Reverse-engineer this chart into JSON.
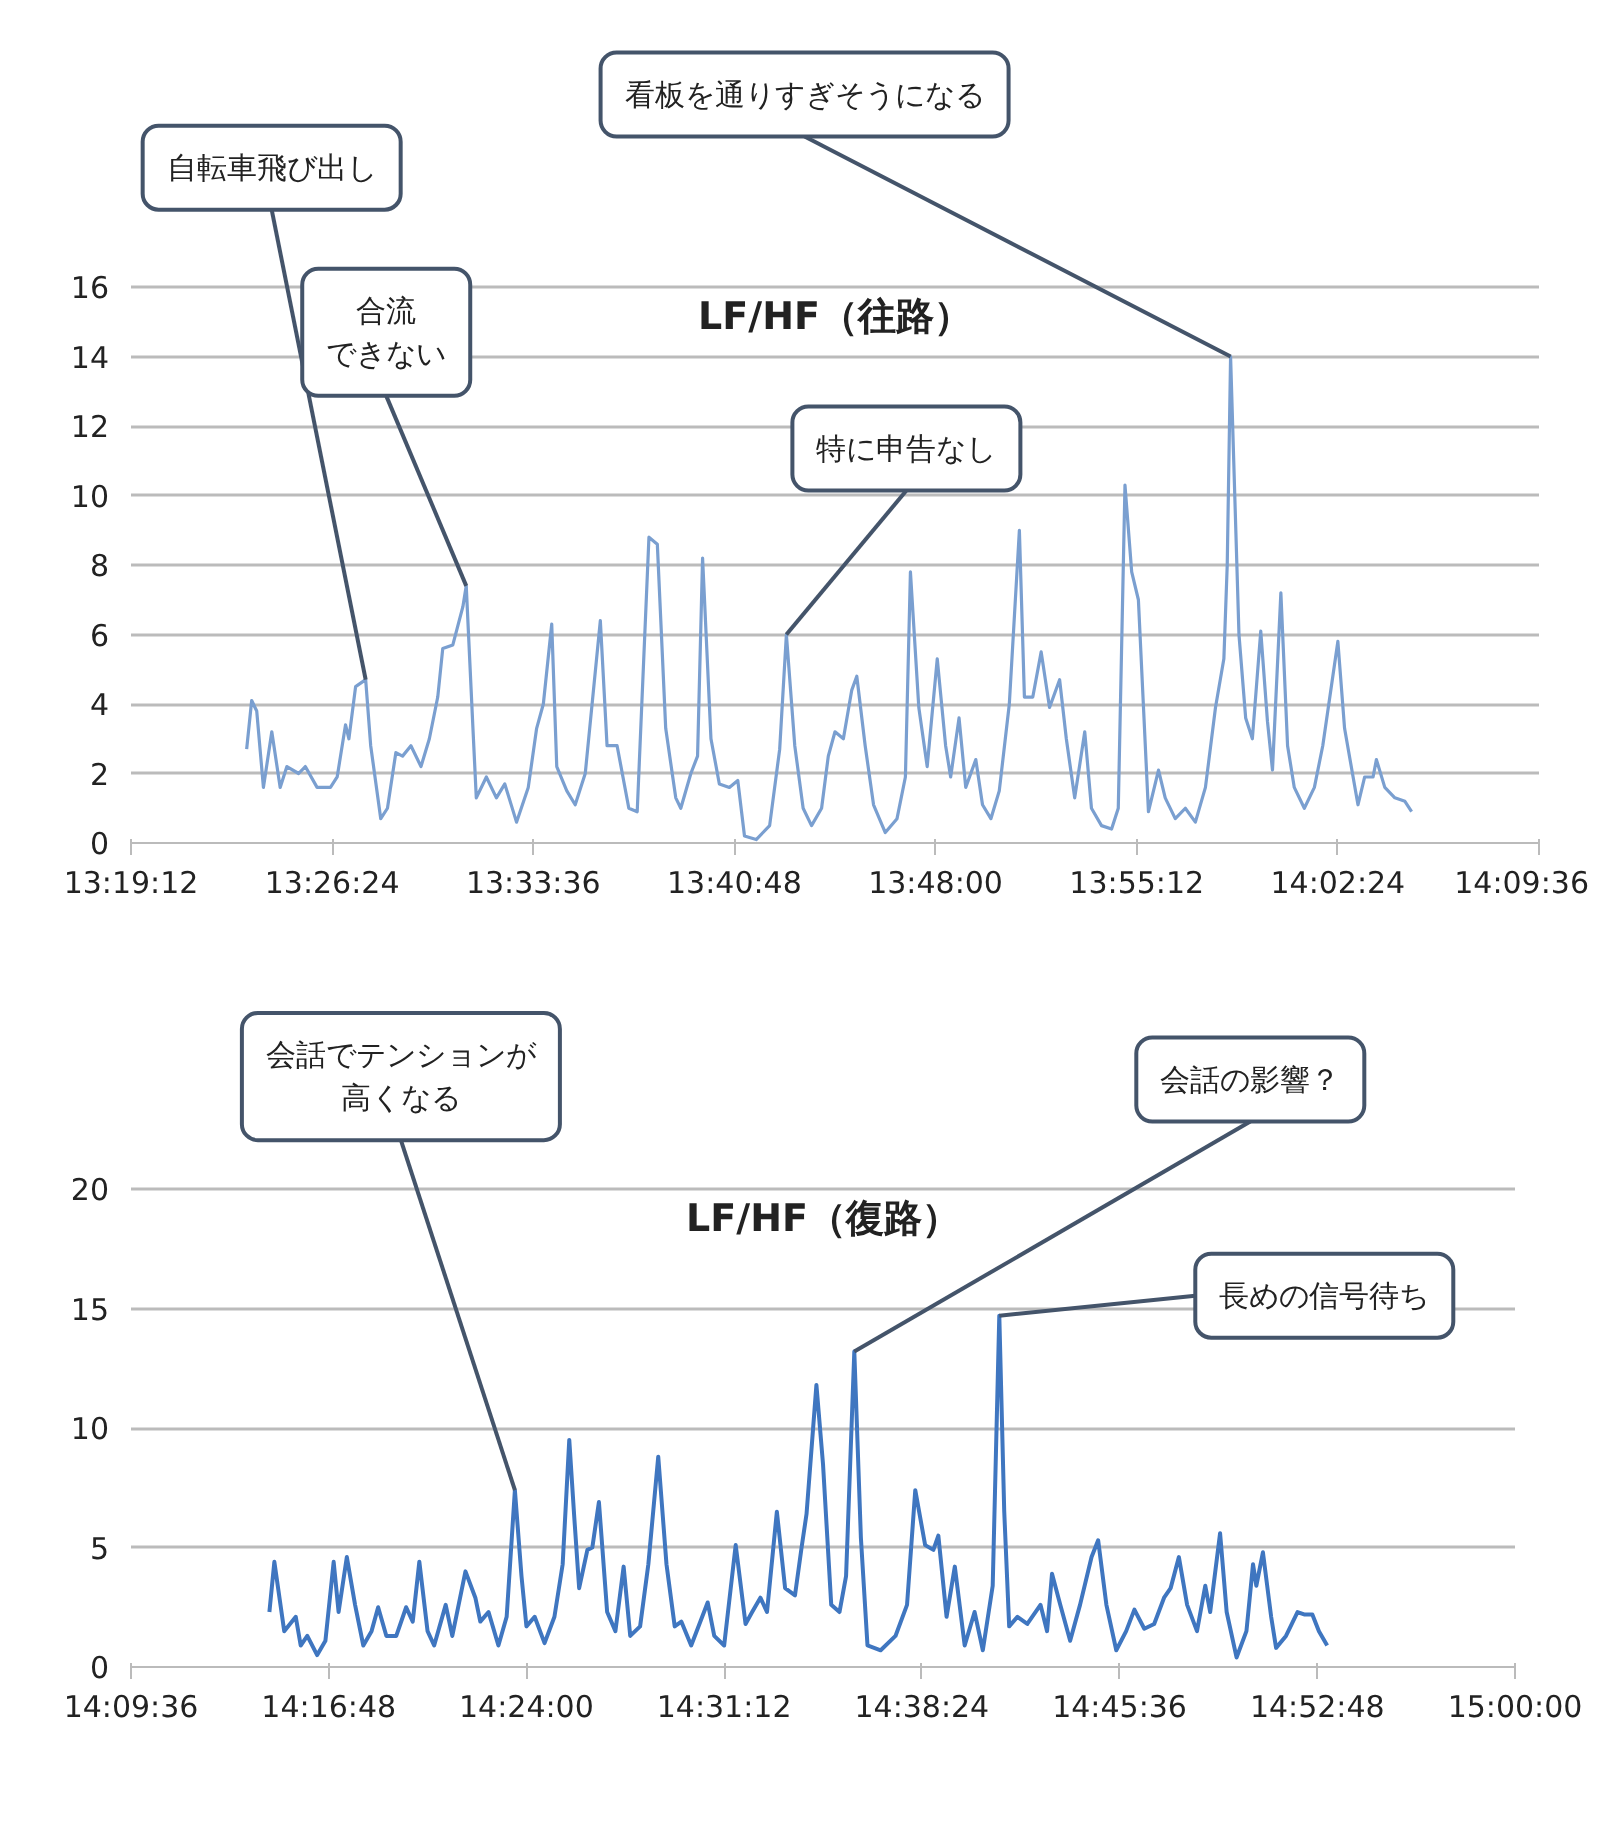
{
  "chart_data": [
    {
      "type": "line",
      "title": "LF/HF（往路）",
      "grid": "y",
      "marker": "none",
      "line_style": "solid",
      "xlim": [
        13.32,
        14.16
      ],
      "xticks": [
        {
          "value": 13.32,
          "label": "13:19:12"
        },
        {
          "value": 13.44,
          "label": "13:26:24"
        },
        {
          "value": 13.56,
          "label": "13:33:36"
        },
        {
          "value": 13.68,
          "label": "13:40:48"
        },
        {
          "value": 13.8,
          "label": "13:48:00"
        },
        {
          "value": 13.92,
          "label": "13:55:12"
        },
        {
          "value": 14.04,
          "label": "14:02:24"
        },
        {
          "value": 14.16,
          "label": "14:09:36"
        }
      ],
      "ylim": [
        0,
        16
      ],
      "yticks": [
        0,
        2,
        4,
        6,
        8,
        10,
        12,
        14,
        16
      ],
      "series": [
        {
          "color": "#7a9fd0",
          "x": [
            13.389,
            13.392,
            13.395,
            13.399,
            13.404,
            13.409,
            13.413,
            13.42,
            13.424,
            13.431,
            13.439,
            13.443,
            13.448,
            13.45,
            13.454,
            13.46,
            13.463,
            13.469,
            13.473,
            13.478,
            13.482,
            13.487,
            13.493,
            13.498,
            13.503,
            13.506,
            13.512,
            13.518,
            13.52,
            13.524,
            13.526,
            13.532,
            13.538,
            13.543,
            13.55,
            13.557,
            13.562,
            13.566,
            13.571,
            13.574,
            13.58,
            13.585,
            13.591,
            13.6,
            13.604,
            13.61,
            13.617,
            13.622,
            13.629,
            13.634,
            13.639,
            13.645,
            13.648,
            13.654,
            13.658,
            13.661,
            13.666,
            13.671,
            13.677,
            13.682,
            13.686,
            13.693,
            13.701,
            13.707,
            13.711,
            13.716,
            13.721,
            13.726,
            13.732,
            13.736,
            13.74,
            13.745,
            13.75,
            13.753,
            13.758,
            13.763,
            13.77,
            13.777,
            13.782,
            13.785,
            13.79,
            13.795,
            13.801,
            13.806,
            13.809,
            13.814,
            13.818,
            13.824,
            13.828,
            13.833,
            13.838,
            13.844,
            13.85,
            13.853,
            13.858,
            13.863,
            13.868,
            13.874,
            13.878,
            13.883,
            13.889,
            13.893,
            13.899,
            13.905,
            13.909,
            13.913,
            13.917,
            13.921,
            13.927,
            13.933,
            13.937,
            13.943,
            13.949,
            13.955,
            13.961,
            13.967,
            13.972,
            13.974,
            13.976,
            13.981,
            13.985,
            13.989,
            13.994,
            13.998,
            14.001,
            14.006,
            14.01,
            14.014,
            14.02,
            14.026,
            14.031,
            14.04,
            14.044,
            14.052,
            14.056,
            14.061,
            14.063,
            14.068,
            14.074,
            14.08,
            14.084
          ],
          "values": [
            2.7,
            4.1,
            3.8,
            1.6,
            3.2,
            1.6,
            2.2,
            2.0,
            2.2,
            1.6,
            1.6,
            1.9,
            3.4,
            3.0,
            4.5,
            4.7,
            2.8,
            0.7,
            1.0,
            2.6,
            2.5,
            2.8,
            2.2,
            3.0,
            4.2,
            5.6,
            5.7,
            6.8,
            7.4,
            3.3,
            1.3,
            1.9,
            1.3,
            1.7,
            0.6,
            1.6,
            3.3,
            4.0,
            6.3,
            2.2,
            1.5,
            1.1,
            2.0,
            6.4,
            2.8,
            2.8,
            1.0,
            0.9,
            8.8,
            8.6,
            3.3,
            1.3,
            1.0,
            2.0,
            2.5,
            8.2,
            3.0,
            1.7,
            1.6,
            1.8,
            0.2,
            0.1,
            0.5,
            2.7,
            6.0,
            2.8,
            1.0,
            0.5,
            1.0,
            2.5,
            3.2,
            3.0,
            4.4,
            4.8,
            2.8,
            1.1,
            0.3,
            0.7,
            1.9,
            7.8,
            3.9,
            2.2,
            5.3,
            2.8,
            1.9,
            3.6,
            1.6,
            2.4,
            1.1,
            0.7,
            1.5,
            4.0,
            9.0,
            4.2,
            4.2,
            5.5,
            3.9,
            4.7,
            3.0,
            1.3,
            3.2,
            1.0,
            0.5,
            0.4,
            1.0,
            10.3,
            7.8,
            7.0,
            0.9,
            2.1,
            1.3,
            0.7,
            1.0,
            0.6,
            1.6,
            3.9,
            5.3,
            8.0,
            14.0,
            6.0,
            3.6,
            3.0,
            6.1,
            3.5,
            2.1,
            7.2,
            2.8,
            1.6,
            1.0,
            1.6,
            2.8,
            5.8,
            3.3,
            1.1,
            1.9,
            1.9,
            2.4,
            1.6,
            1.3,
            1.2,
            0.9
          ]
        }
      ],
      "annotations": [
        {
          "text": "自転車飛び出し",
          "x": 13.46,
          "y": 4.7
        },
        {
          "text": "合流できない",
          "x": 13.52,
          "y": 7.4
        },
        {
          "text": "特に申告なし",
          "x": 13.711,
          "y": 6.0
        },
        {
          "text": "看板を通りすぎそうになる",
          "x": 13.976,
          "y": 14.0
        }
      ]
    },
    {
      "type": "line",
      "title": "LF/HF（復路）",
      "grid": "y",
      "marker": "none",
      "line_style": "solid",
      "xlim": [
        14.16,
        15.0
      ],
      "xticks": [
        {
          "value": 14.16,
          "label": "14:09:36"
        },
        {
          "value": 14.28,
          "label": "14:16:48"
        },
        {
          "value": 14.4,
          "label": "14:24:00"
        },
        {
          "value": 14.52,
          "label": "14:31:12"
        },
        {
          "value": 14.64,
          "label": "14:38:24"
        },
        {
          "value": 14.76,
          "label": "14:45:36"
        },
        {
          "value": 14.88,
          "label": "14:52:48"
        },
        {
          "value": 15.0,
          "label": "15:00:00"
        }
      ],
      "ylim": [
        0,
        20
      ],
      "yticks": [
        0,
        5,
        10,
        15,
        20
      ],
      "series": [
        {
          "color": "#3f76c0",
          "x": [
            14.244,
            14.247,
            14.253,
            14.26,
            14.263,
            14.267,
            14.273,
            14.278,
            14.283,
            14.286,
            14.291,
            14.296,
            14.301,
            14.306,
            14.31,
            14.315,
            14.321,
            14.327,
            14.331,
            14.335,
            14.34,
            14.344,
            14.351,
            14.355,
            14.363,
            14.369,
            14.372,
            14.377,
            14.383,
            14.388,
            14.393,
            14.397,
            14.4,
            14.405,
            14.411,
            14.417,
            14.422,
            14.426,
            14.429,
            14.432,
            14.437,
            14.44,
            14.444,
            14.449,
            14.454,
            14.459,
            14.463,
            14.469,
            14.474,
            14.48,
            14.485,
            14.49,
            14.494,
            14.5,
            14.51,
            14.514,
            14.52,
            14.527,
            14.533,
            14.537,
            14.542,
            14.546,
            14.552,
            14.557,
            14.563,
            14.567,
            14.57,
            14.576,
            14.58,
            14.585,
            14.59,
            14.594,
            14.599,
            14.603,
            14.607,
            14.615,
            14.624,
            14.631,
            14.636,
            14.642,
            14.647,
            14.65,
            14.655,
            14.66,
            14.666,
            14.672,
            14.677,
            14.683,
            14.687,
            14.69,
            14.693,
            14.698,
            14.704,
            14.712,
            14.716,
            14.719,
            14.724,
            14.73,
            14.736,
            14.743,
            14.747,
            14.752,
            14.758,
            14.764,
            14.769,
            14.775,
            14.781,
            14.787,
            14.791,
            14.796,
            14.801,
            14.807,
            14.812,
            14.815,
            14.821,
            14.825,
            14.831,
            14.837,
            14.841,
            14.843,
            14.847,
            14.852,
            14.855,
            14.861,
            14.868,
            14.872,
            14.877,
            14.881,
            14.886
          ],
          "values": [
            2.3,
            4.4,
            1.5,
            2.1,
            0.9,
            1.3,
            0.5,
            1.1,
            4.4,
            2.3,
            4.6,
            2.6,
            0.9,
            1.5,
            2.5,
            1.3,
            1.3,
            2.5,
            1.9,
            4.4,
            1.5,
            0.9,
            2.6,
            1.3,
            4.0,
            2.9,
            1.9,
            2.3,
            0.9,
            2.1,
            7.4,
            3.8,
            1.7,
            2.1,
            1.0,
            2.1,
            4.3,
            9.5,
            6.3,
            3.3,
            4.9,
            5.0,
            6.9,
            2.3,
            1.5,
            4.2,
            1.3,
            1.7,
            4.3,
            8.8,
            4.3,
            1.7,
            1.9,
            0.9,
            2.7,
            1.3,
            0.9,
            5.1,
            1.8,
            2.3,
            2.9,
            2.3,
            6.5,
            3.3,
            3.0,
            5.0,
            6.4,
            11.8,
            8.5,
            2.6,
            2.3,
            3.8,
            13.2,
            5.4,
            0.9,
            0.7,
            1.3,
            2.6,
            7.4,
            5.1,
            4.9,
            5.5,
            2.1,
            4.2,
            0.9,
            2.3,
            0.7,
            3.4,
            14.7,
            6.5,
            1.7,
            2.1,
            1.8,
            2.6,
            1.5,
            3.9,
            2.6,
            1.1,
            2.6,
            4.6,
            5.3,
            2.6,
            0.7,
            1.5,
            2.4,
            1.6,
            1.8,
            2.9,
            3.3,
            4.6,
            2.6,
            1.5,
            3.4,
            2.3,
            5.6,
            2.3,
            0.4,
            1.5,
            4.3,
            3.4,
            4.8,
            2.1,
            0.8,
            1.3,
            2.3,
            2.2,
            2.2,
            1.5,
            0.9
          ]
        }
      ],
      "annotations": [
        {
          "text": "会話でテンションが高くなる",
          "x": 14.393,
          "y": 7.4
        },
        {
          "text": "会話の影響？",
          "x": 14.599,
          "y": 13.2
        },
        {
          "text": "長めの信号待ち",
          "x": 14.687,
          "y": 14.7
        }
      ]
    }
  ]
}
